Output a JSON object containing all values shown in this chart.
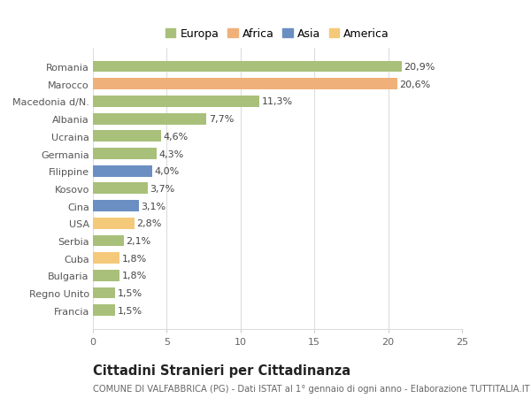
{
  "categories": [
    "Francia",
    "Regno Unito",
    "Bulgaria",
    "Cuba",
    "Serbia",
    "USA",
    "Cina",
    "Kosovo",
    "Filippine",
    "Germania",
    "Ucraina",
    "Albania",
    "Macedonia d/N.",
    "Marocco",
    "Romania"
  ],
  "values": [
    1.5,
    1.5,
    1.8,
    1.8,
    2.1,
    2.8,
    3.1,
    3.7,
    4.0,
    4.3,
    4.6,
    7.7,
    11.3,
    20.6,
    20.9
  ],
  "labels": [
    "1,5%",
    "1,5%",
    "1,8%",
    "1,8%",
    "2,1%",
    "2,8%",
    "3,1%",
    "3,7%",
    "4,0%",
    "4,3%",
    "4,6%",
    "7,7%",
    "11,3%",
    "20,6%",
    "20,9%"
  ],
  "colors": [
    "#a8c07a",
    "#a8c07a",
    "#a8c07a",
    "#f5c97a",
    "#a8c07a",
    "#f5c97a",
    "#6b8fc2",
    "#a8c07a",
    "#6b8fc2",
    "#a8c07a",
    "#a8c07a",
    "#a8c07a",
    "#a8c07a",
    "#f0b07a",
    "#a8c07a"
  ],
  "legend_labels": [
    "Europa",
    "Africa",
    "Asia",
    "America"
  ],
  "legend_colors": [
    "#a8c07a",
    "#f0b07a",
    "#6b8fc2",
    "#f5c97a"
  ],
  "xlim": [
    0,
    25
  ],
  "xticks": [
    0,
    5,
    10,
    15,
    20,
    25
  ],
  "title": "Cittadini Stranieri per Cittadinanza",
  "subtitle": "COMUNE DI VALFABBRICA (PG) - Dati ISTAT al 1° gennaio di ogni anno - Elaborazione TUTTITALIA.IT",
  "bg_color": "#ffffff",
  "grid_color": "#dddddd",
  "bar_height": 0.65,
  "label_fontsize": 8.0,
  "tick_fontsize": 8.0,
  "title_fontsize": 10.5,
  "subtitle_fontsize": 7.2,
  "legend_fontsize": 9.0
}
